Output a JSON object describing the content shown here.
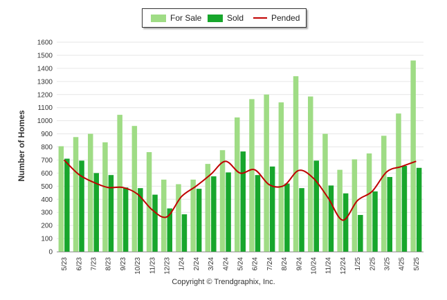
{
  "chart_data": {
    "type": "bar",
    "categories": [
      "5/23",
      "6/23",
      "7/23",
      "8/23",
      "9/23",
      "10/23",
      "11/23",
      "12/23",
      "1/24",
      "2/24",
      "3/24",
      "4/24",
      "5/24",
      "6/24",
      "7/24",
      "8/24",
      "9/24",
      "10/24",
      "11/24",
      "12/24",
      "1/25",
      "2/25",
      "3/25",
      "4/25",
      "5/25"
    ],
    "series": [
      {
        "name": "For Sale",
        "type": "bar",
        "color": "#9fdc85",
        "values": [
          805,
          875,
          900,
          835,
          1045,
          960,
          760,
          550,
          515,
          550,
          670,
          775,
          1025,
          1165,
          1200,
          1140,
          1340,
          1185,
          900,
          625,
          705,
          750,
          885,
          1055,
          1460
        ]
      },
      {
        "name": "Sold",
        "type": "bar",
        "color": "#17a62c",
        "values": [
          710,
          695,
          600,
          585,
          490,
          485,
          435,
          330,
          285,
          480,
          575,
          605,
          765,
          585,
          650,
          520,
          485,
          695,
          505,
          445,
          280,
          460,
          570,
          655,
          640
        ]
      },
      {
        "name": "Pended",
        "type": "line",
        "color": "#c00000",
        "values": [
          700,
          590,
          530,
          490,
          490,
          440,
          320,
          265,
          420,
          500,
          590,
          690,
          600,
          625,
          510,
          505,
          620,
          560,
          410,
          240,
          390,
          460,
          610,
          650,
          690
        ]
      }
    ],
    "ylabel": "Number of Homes",
    "yticks": [
      0,
      100,
      200,
      300,
      400,
      500,
      600,
      700,
      800,
      900,
      1000,
      1100,
      1200,
      1300,
      1400,
      1500,
      1600
    ],
    "ylim": [
      0,
      1600
    ],
    "grid": true,
    "legend_position": "top-center",
    "footer": "Copyright © Trendgraphix, Inc."
  }
}
